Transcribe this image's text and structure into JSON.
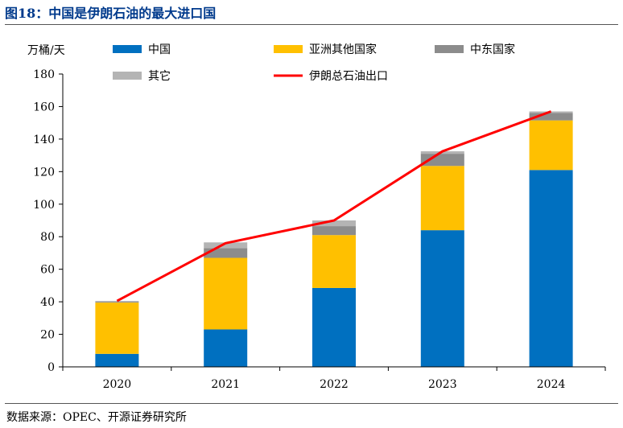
{
  "figure": {
    "title": "图18：中国是伊朗石油的最大进口国",
    "source": "数据来源：OPEC、开源证券研究所"
  },
  "chart_data": {
    "type": "bar",
    "stacked": true,
    "ylabel": "万桶/天",
    "ylim": [
      0,
      180
    ],
    "yticks": [
      0,
      20,
      40,
      60,
      80,
      100,
      120,
      140,
      160,
      180
    ],
    "categories": [
      "2020",
      "2021",
      "2022",
      "2023",
      "2024"
    ],
    "series": [
      {
        "name": "中国",
        "type": "bar",
        "color": "#0070C0",
        "values": [
          8,
          23,
          48.5,
          84,
          121
        ]
      },
      {
        "name": "亚洲其他国家",
        "type": "bar",
        "color": "#FFC000",
        "values": [
          31.5,
          44,
          32.5,
          39.5,
          30.5
        ]
      },
      {
        "name": "中东国家",
        "type": "bar",
        "color": "#8C8C8C",
        "values": [
          0.5,
          6,
          5.5,
          7.5,
          4.5
        ]
      },
      {
        "name": "其它",
        "type": "bar",
        "color": "#B4B4B4",
        "values": [
          0.5,
          3.5,
          3.5,
          1.5,
          1
        ]
      },
      {
        "name": "伊朗总石油出口",
        "type": "line",
        "color": "#FF0000",
        "values": [
          40.5,
          76,
          90,
          132.5,
          157
        ]
      }
    ],
    "legend_placement": "top",
    "grid": false
  }
}
